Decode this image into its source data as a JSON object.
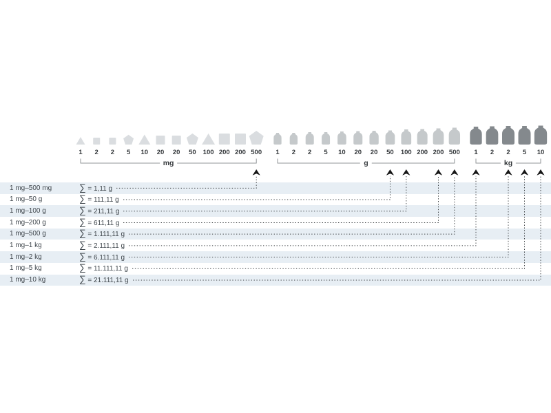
{
  "diagram": {
    "description": "weight-set-overview",
    "sections": [
      {
        "unit": "mg",
        "items": [
          {
            "value": "1",
            "shape": "triangle"
          },
          {
            "value": "2",
            "shape": "square"
          },
          {
            "value": "2",
            "shape": "square"
          },
          {
            "value": "5",
            "shape": "pentagon"
          },
          {
            "value": "10",
            "shape": "triangle"
          },
          {
            "value": "20",
            "shape": "square"
          },
          {
            "value": "20",
            "shape": "square"
          },
          {
            "value": "50",
            "shape": "pentagon"
          },
          {
            "value": "100",
            "shape": "triangle"
          },
          {
            "value": "200",
            "shape": "square"
          },
          {
            "value": "200",
            "shape": "square"
          },
          {
            "value": "500",
            "shape": "pentagon"
          }
        ]
      },
      {
        "unit": "g",
        "items": [
          {
            "value": "1",
            "shape": "weight"
          },
          {
            "value": "2",
            "shape": "weight"
          },
          {
            "value": "2",
            "shape": "weight"
          },
          {
            "value": "5",
            "shape": "weight"
          },
          {
            "value": "10",
            "shape": "weight"
          },
          {
            "value": "20",
            "shape": "weight"
          },
          {
            "value": "20",
            "shape": "weight"
          },
          {
            "value": "50",
            "shape": "weight"
          },
          {
            "value": "100",
            "shape": "weight"
          },
          {
            "value": "200",
            "shape": "weight"
          },
          {
            "value": "200",
            "shape": "weight"
          },
          {
            "value": "500",
            "shape": "weight"
          }
        ]
      },
      {
        "unit": "kg",
        "items": [
          {
            "value": "1",
            "shape": "weight"
          },
          {
            "value": "2",
            "shape": "weight"
          },
          {
            "value": "2",
            "shape": "weight"
          },
          {
            "value": "5",
            "shape": "weight"
          },
          {
            "value": "10",
            "shape": "weight"
          }
        ]
      }
    ],
    "rows": [
      {
        "range": "1 mg–500 mg",
        "sum": "∑ = 1,11 g",
        "points_to": {
          "section": 0,
          "index": 11
        }
      },
      {
        "range": "1 mg–50 g",
        "sum": "∑ = 111,11 g",
        "points_to": {
          "section": 1,
          "index": 7
        }
      },
      {
        "range": "1 mg–100 g",
        "sum": "∑ = 211,11 g",
        "points_to": {
          "section": 1,
          "index": 8
        }
      },
      {
        "range": "1 mg–200 g",
        "sum": "∑ = 611,11 g",
        "points_to": {
          "section": 1,
          "index": 10
        }
      },
      {
        "range": "1 mg–500 g",
        "sum": "∑ = 1.111,11 g",
        "points_to": {
          "section": 1,
          "index": 11
        }
      },
      {
        "range": "1 mg–1 kg",
        "sum": "∑ = 2.111,11 g",
        "points_to": {
          "section": 2,
          "index": 0
        }
      },
      {
        "range": "1 mg–2 kg",
        "sum": "∑ = 6.111,11 g",
        "points_to": {
          "section": 2,
          "index": 2
        }
      },
      {
        "range": "1 mg–5 kg",
        "sum": "∑ = 11.111,11 g",
        "points_to": {
          "section": 2,
          "index": 3
        }
      },
      {
        "range": "1 mg–10 kg",
        "sum": "∑ = 21.111,11 g",
        "points_to": {
          "section": 2,
          "index": 4
        }
      }
    ],
    "colors": {
      "mg_icon": "#dadde0",
      "g_icon": "#c5c9cb",
      "kg_icon": "#84898d",
      "stripe": "#e7eef4",
      "text": "#3f464c",
      "number_text": "#35393c",
      "bracket_line": "#909497",
      "connector": "#3f4346",
      "arrow": "#161616",
      "background": "#ffffff"
    }
  }
}
